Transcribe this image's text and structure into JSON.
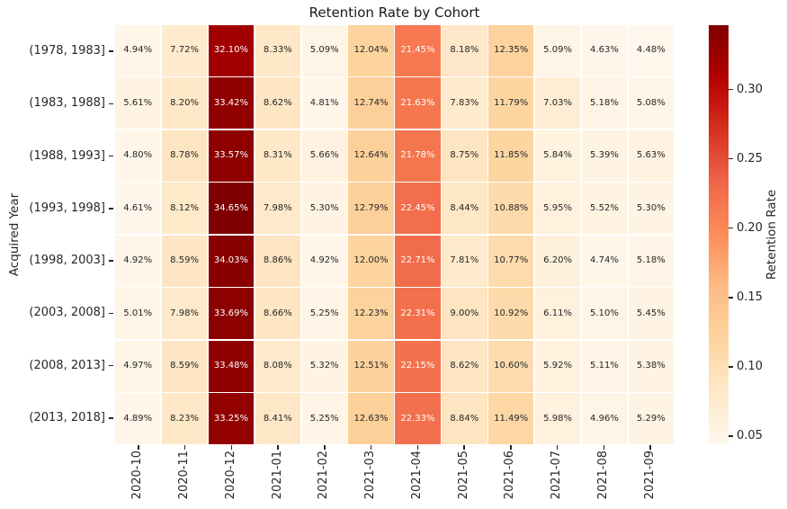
{
  "chart_data": {
    "type": "heatmap",
    "title": "Retention Rate by Cohort",
    "ylabel": "Acquired Year",
    "colorbar_label": "Retention Rate",
    "x_categories": [
      "2020-10",
      "2020-11",
      "2020-12",
      "2021-01",
      "2021-02",
      "2021-03",
      "2021-04",
      "2021-05",
      "2021-06",
      "2021-07",
      "2021-08",
      "2021-09"
    ],
    "y_categories": [
      "(1978, 1983]",
      "(1983, 1988]",
      "(1988, 1993]",
      "(1993, 1998]",
      "(1998, 2003]",
      "(2003, 2008]",
      "(2008, 2013]",
      "(2013, 2018]"
    ],
    "values_percent": [
      [
        4.94,
        7.72,
        32.1,
        8.33,
        5.09,
        12.04,
        21.45,
        8.18,
        12.35,
        5.09,
        4.63,
        4.48
      ],
      [
        5.61,
        8.2,
        33.42,
        8.62,
        4.81,
        12.74,
        21.63,
        7.83,
        11.79,
        7.03,
        5.18,
        5.08
      ],
      [
        4.8,
        8.78,
        33.57,
        8.31,
        5.66,
        12.64,
        21.78,
        8.75,
        11.85,
        5.84,
        5.39,
        5.63
      ],
      [
        4.61,
        8.12,
        34.65,
        7.98,
        5.3,
        12.79,
        22.45,
        8.44,
        10.88,
        5.95,
        5.52,
        5.3
      ],
      [
        4.92,
        8.59,
        34.03,
        8.86,
        4.92,
        12.0,
        22.71,
        7.81,
        10.77,
        6.2,
        4.74,
        5.18
      ],
      [
        5.01,
        7.98,
        33.69,
        8.66,
        5.25,
        12.23,
        22.31,
        9.0,
        10.92,
        6.11,
        5.1,
        5.45
      ],
      [
        4.97,
        8.59,
        33.48,
        8.08,
        5.32,
        12.51,
        22.15,
        8.62,
        10.6,
        5.92,
        5.11,
        5.38
      ],
      [
        4.89,
        8.23,
        33.25,
        8.41,
        5.25,
        12.63,
        22.33,
        8.84,
        11.49,
        5.98,
        4.96,
        5.29
      ]
    ],
    "value_suffix": "%",
    "vmin": 0.0448,
    "vmax": 0.3465,
    "colormap": "OrRd",
    "colormap_stops": [
      "#fff7ec",
      "#fee8c8",
      "#fdd49e",
      "#fdbb84",
      "#fc8d59",
      "#ef6548",
      "#d7301f",
      "#b30000",
      "#7f0000"
    ],
    "colorbar_ticks": [
      0.05,
      0.1,
      0.15,
      0.2,
      0.25,
      0.3
    ],
    "grid_line_color": "#ffffff",
    "annotation_dark_text": "#262626",
    "annotation_light_text": "#ffffff",
    "legend_position": "right",
    "x_tick_rotation_deg": 90
  }
}
